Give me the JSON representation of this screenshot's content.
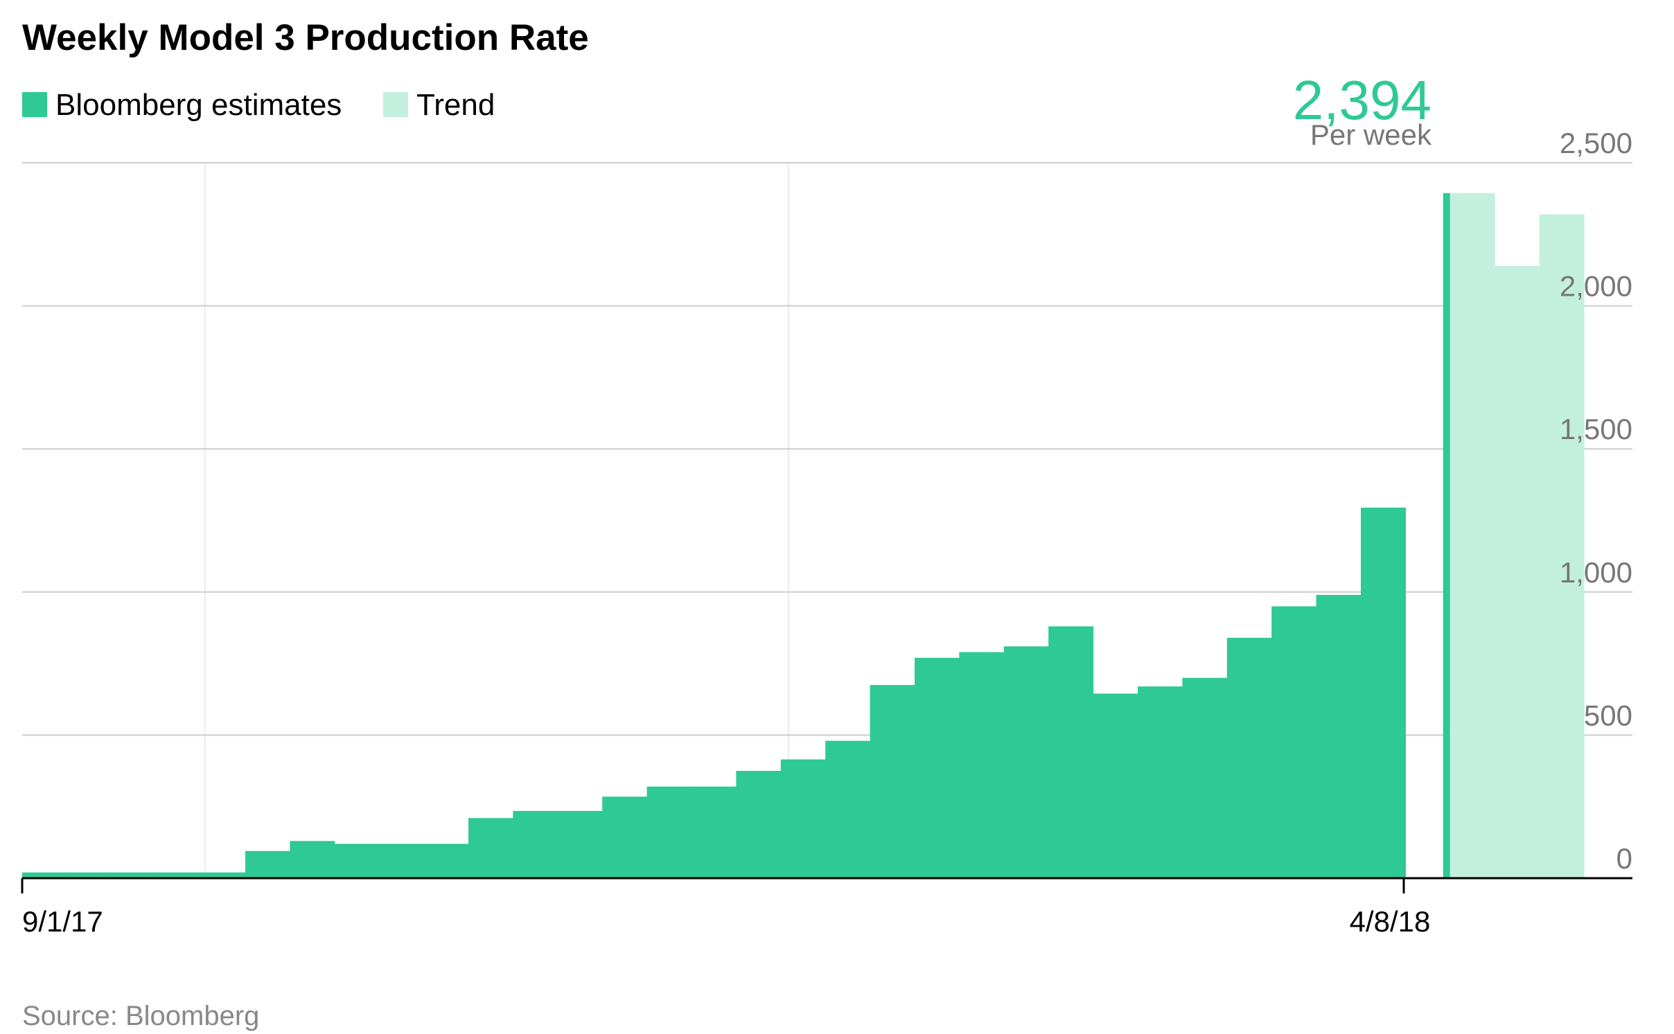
{
  "title": "Weekly Model 3 Production Rate",
  "source": "Source: Bloomberg",
  "callout": {
    "value": "2,394",
    "unit": "Per week"
  },
  "colors": {
    "estimates": "#2ec995",
    "trend": "#c3f0de",
    "gridline": "#cccccc",
    "axis": "#000000"
  },
  "chart_data": {
    "type": "bar",
    "ylim": [
      0,
      2500
    ],
    "yticks": [
      0,
      500,
      1000,
      1500,
      2000,
      2500
    ],
    "ytick_labels": [
      "0",
      "500",
      "1,000",
      "1,500",
      "2,000",
      "2,500"
    ],
    "xtick_labels": [
      "9/1/17",
      "4/8/18"
    ],
    "grid": true,
    "legend_position": "top-left",
    "series": [
      {
        "name": "Bloomberg estimates",
        "values": [
          20,
          20,
          20,
          20,
          20,
          95,
          130,
          120,
          120,
          120,
          210,
          235,
          235,
          285,
          320,
          320,
          375,
          415,
          480,
          675,
          770,
          790,
          810,
          880,
          645,
          670,
          700,
          840,
          950,
          990,
          1295,
          2394
        ]
      },
      {
        "name": "Trend",
        "values": [
          2394,
          2140,
          2320
        ]
      }
    ]
  }
}
